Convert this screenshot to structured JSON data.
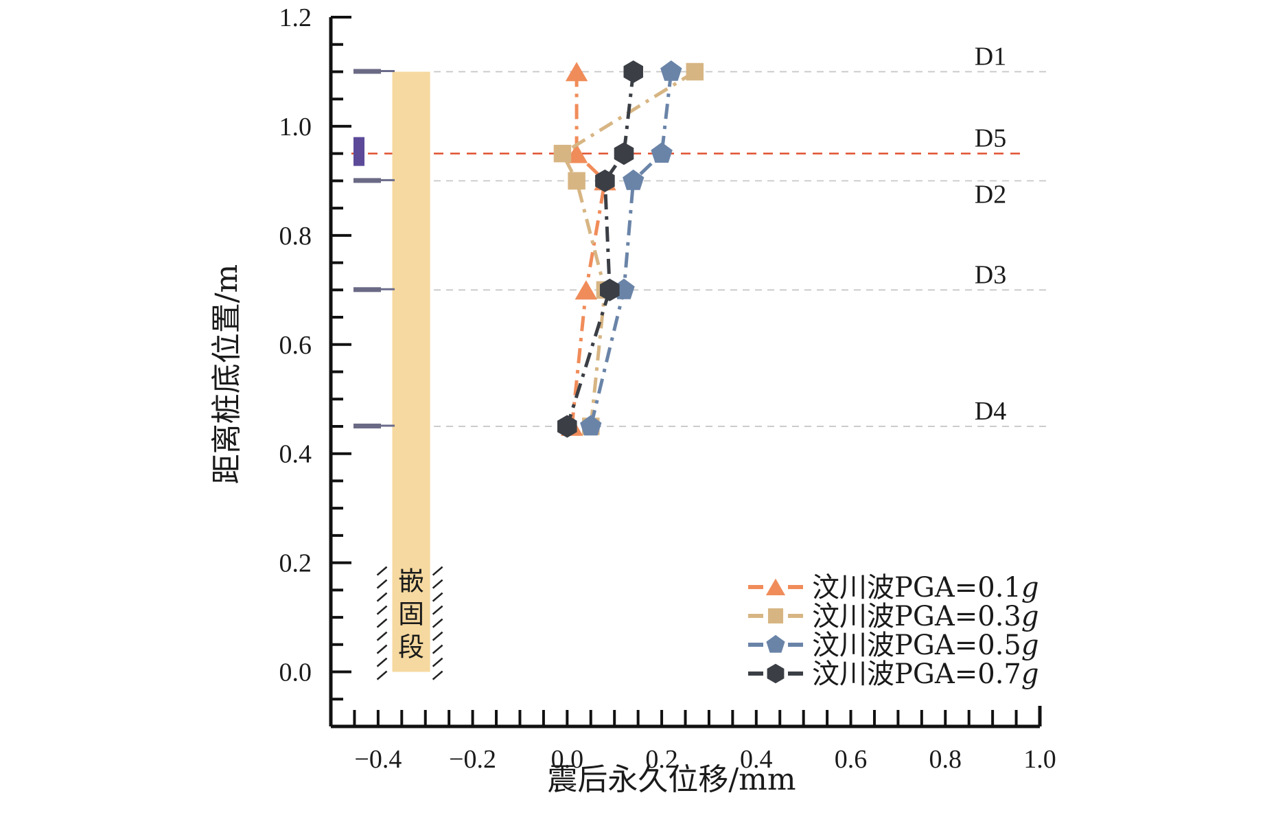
{
  "chart_data": {
    "type": "line",
    "title": "",
    "xlabel": "震后永久位移/mm",
    "ylabel": "距离桩底位置/m",
    "xlim": [
      -0.5,
      1.0
    ],
    "ylim": [
      -0.1,
      1.2
    ],
    "xticks": [
      "-0.4",
      "-0.2",
      "0.0",
      "0.2",
      "0.4",
      "0.6",
      "0.8",
      "1.0"
    ],
    "xtick_values": [
      -0.4,
      -0.2,
      0.0,
      0.2,
      0.4,
      0.6,
      0.8,
      1.0
    ],
    "yticks": [
      "0.0",
      "0.2",
      "0.4",
      "0.6",
      "0.8",
      "1.0",
      "1.2"
    ],
    "ytick_values": [
      0.0,
      0.2,
      0.4,
      0.6,
      0.8,
      1.0,
      1.2
    ],
    "grid": false,
    "legend_position": "bottom-right",
    "reference_lines": [
      {
        "label": "D1",
        "y": 1.1,
        "style": "gray-dashed"
      },
      {
        "label": "D5",
        "y": 0.95,
        "style": "red-dashed"
      },
      {
        "label": "D2",
        "y": 0.9,
        "style": "gray-dashed"
      },
      {
        "label": "D3",
        "y": 0.7,
        "style": "gray-dashed"
      },
      {
        "label": "D4",
        "y": 0.45,
        "style": "gray-dashed"
      }
    ],
    "pile": {
      "x_range": [
        -0.37,
        -0.29
      ],
      "y_range": [
        0.0,
        1.1
      ],
      "embedded_label": "嵌固段",
      "embedded_y_range": [
        0.0,
        0.2
      ],
      "color": "#f6d9a0"
    },
    "sensors": {
      "gauge_y": [
        1.1,
        0.9,
        0.7,
        0.45
      ],
      "accelerometer_y": 0.95
    },
    "series": [
      {
        "name": "汶川波PGA=0.1g",
        "label_main": "汶川波PGA=0.1",
        "label_unit": "g",
        "marker": "triangle",
        "color": "#f08c5a",
        "y": [
          1.1,
          0.95,
          0.9,
          0.7,
          0.45
        ],
        "x": [
          0.02,
          0.02,
          0.08,
          0.04,
          0.01
        ]
      },
      {
        "name": "汶川波PGA=0.3g",
        "label_main": "汶川波PGA=0.3",
        "label_unit": "g",
        "marker": "square",
        "color": "#d7b583",
        "y": [
          1.1,
          0.95,
          0.9,
          0.7,
          0.45
        ],
        "x": [
          0.27,
          -0.01,
          0.02,
          0.08,
          0.05
        ]
      },
      {
        "name": "汶川波PGA=0.5g",
        "label_main": "汶川波PGA=0.5",
        "label_unit": "g",
        "marker": "pentagon",
        "color": "#6a84a8",
        "y": [
          1.1,
          0.95,
          0.9,
          0.7,
          0.45
        ],
        "x": [
          0.22,
          0.2,
          0.14,
          0.12,
          0.05
        ]
      },
      {
        "name": "汶川波PGA=0.7g",
        "label_main": "汶川波PGA=0.7",
        "label_unit": "g",
        "marker": "hexagon",
        "color": "#3b3f45",
        "y": [
          1.1,
          0.95,
          0.9,
          0.7,
          0.45
        ],
        "x": [
          0.14,
          0.12,
          0.08,
          0.09,
          0.0
        ]
      }
    ]
  }
}
